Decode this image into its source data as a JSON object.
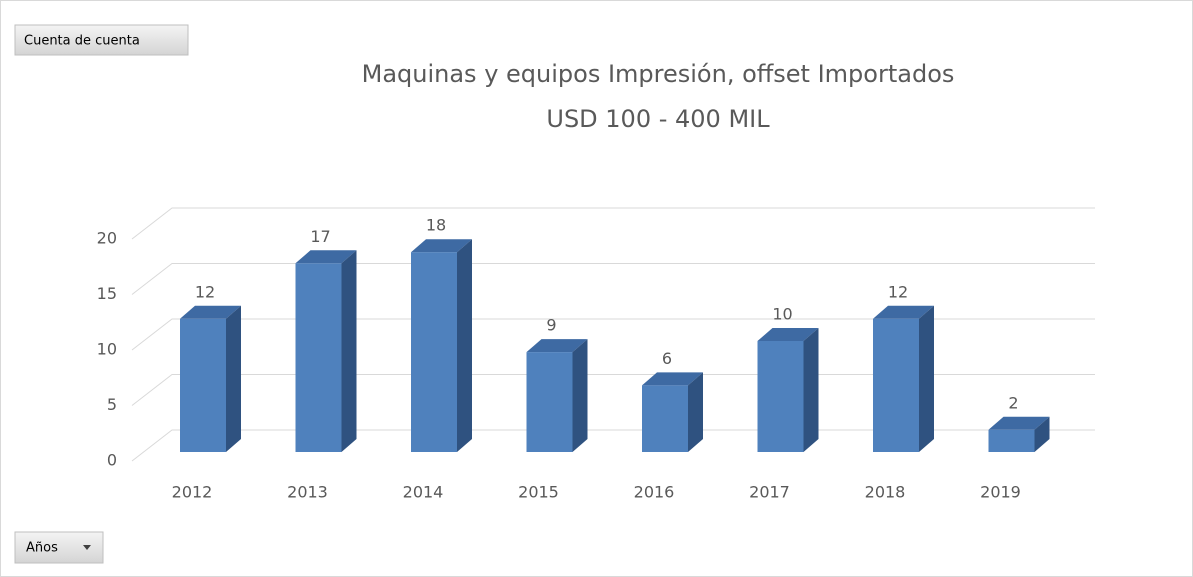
{
  "chart_data": {
    "type": "bar3d",
    "title": [
      "Maquinas y equipos Impresión, offset Importados",
      "USD 100 - 400 MIL"
    ],
    "value_field_button": "Cuenta de cuenta",
    "axis_field_button": "Años",
    "categories": [
      "2012",
      "2013",
      "2014",
      "2015",
      "2016",
      "2017",
      "2018",
      "2019"
    ],
    "values": [
      12,
      17,
      18,
      9,
      6,
      10,
      12,
      2
    ],
    "color": "#4f81bd",
    "ylim": [
      0,
      20
    ],
    "yticks": [
      0,
      5,
      10,
      15,
      20
    ],
    "grid": true
  }
}
